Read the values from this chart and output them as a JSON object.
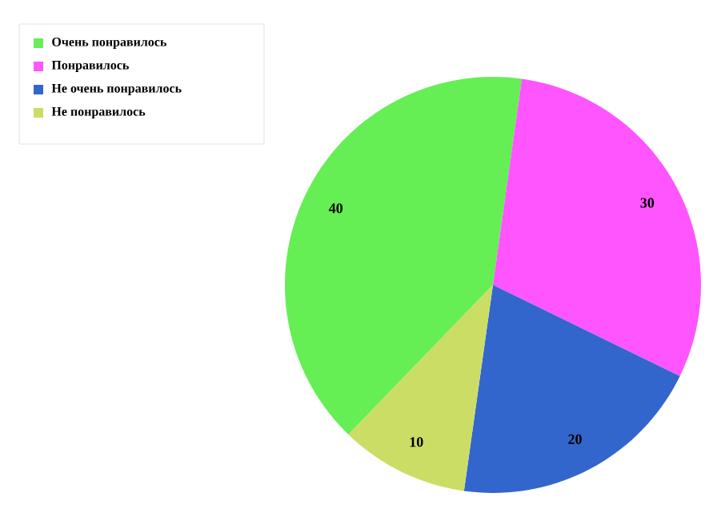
{
  "chart_data": {
    "type": "pie",
    "categories": [
      "Очень понравилось",
      "Понравилось",
      "Не очень понравилось",
      "Не понравилось"
    ],
    "values": [
      40,
      30,
      20,
      10
    ],
    "colors": [
      "#66ee55",
      "#ff55ff",
      "#3366cc",
      "#ccdd66"
    ],
    "data_labels": true,
    "legend": "top left"
  }
}
